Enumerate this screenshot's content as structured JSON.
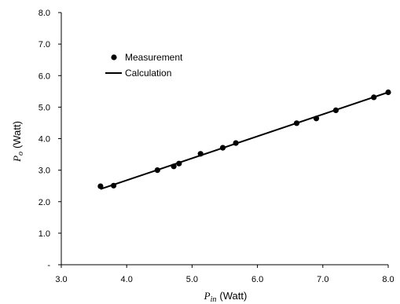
{
  "chart_data": {
    "type": "scatter",
    "xlim": [
      3.0,
      8.0
    ],
    "ylim": [
      0.0,
      8.0
    ],
    "x_ticks": [
      "3.0",
      "4.0",
      "5.0",
      "6.0",
      "7.0",
      "8.0"
    ],
    "y_ticks": [
      "-",
      "1.0",
      "2.0",
      "3.0",
      "4.0",
      "5.0",
      "6.0",
      "7.0",
      "8.0"
    ],
    "xlabel": {
      "symbol": "P",
      "subscript": "in",
      "unit": "(Watt)"
    },
    "ylabel": {
      "symbol": "P",
      "subscript": "o",
      "unit": "(Watt)"
    },
    "legend_position": "top-left",
    "series": [
      {
        "name": "Measurement",
        "kind": "points",
        "marker": "circle",
        "x": [
          3.6,
          3.8,
          4.47,
          4.72,
          4.8,
          5.13,
          5.47,
          5.67,
          6.6,
          6.9,
          7.2,
          7.78,
          8.0
        ],
        "y": [
          2.49,
          2.51,
          3.0,
          3.12,
          3.21,
          3.52,
          3.71,
          3.86,
          4.49,
          4.64,
          4.9,
          5.31,
          5.47
        ]
      },
      {
        "name": "Calculation",
        "kind": "line",
        "x": [
          3.6,
          8.0
        ],
        "y": [
          2.4,
          5.47
        ]
      }
    ],
    "colors": {
      "marks": "#000000",
      "axis": "#000000"
    }
  }
}
